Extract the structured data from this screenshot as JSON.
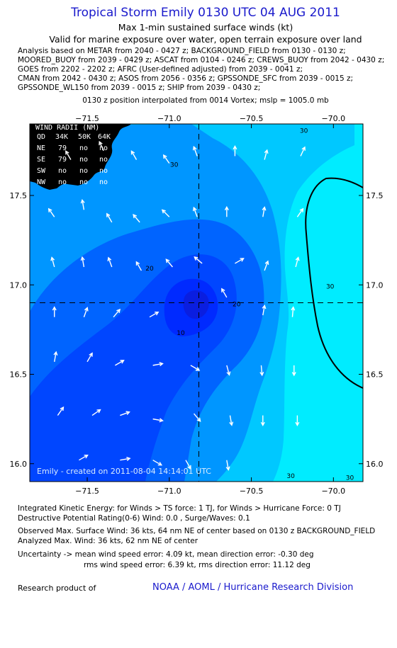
{
  "header": {
    "title": "Tropical Storm Emily 0130 UTC 04 AUG 2011",
    "subtitle": "Max 1-min sustained surface winds (kt)",
    "valid": "Valid for marine exposure over water, open terrain exposure over land",
    "analysis_lines": [
      "Analysis based on METAR from 2040 - 0427 z; BACKGROUND_FIELD from 0130 - 0130 z;",
      "MOORED_BUOY from 2039 - 0429 z; ASCAT from 0104 - 0246 z; CREWS_BUOY from 2042 - 0430 z;",
      "GOES from 2202 - 2202 z; AFRC (User-defined adjusted) from 2039 - 0041 z;",
      "CMAN from 2042 - 0430 z; ASOS from 2056 - 0356 z; GPSSONDE_SFC from 2039 - 0015 z;",
      "GPSSONDE_WL150 from 2039 - 0015 z; SHIP from 2039 - 0430 z;"
    ],
    "position_line": "0130 z position interpolated from 0014 Vortex; mslp = 1005.0 mb"
  },
  "chart_data": {
    "type": "contour",
    "x_ticks": [
      -71.5,
      -71.0,
      -70.5,
      -70.0
    ],
    "x_tick_labels": [
      "−71.5",
      "−71.0",
      "−70.5",
      "−70.0"
    ],
    "y_ticks": [
      17.5,
      17.0,
      16.5,
      16.0
    ],
    "y_tick_labels": [
      "17.5",
      "17.0",
      "16.5",
      "16.0"
    ],
    "xlim": [
      -71.85,
      -69.82
    ],
    "ylim": [
      15.9,
      17.9
    ],
    "center": {
      "lon": -70.82,
      "lat": 16.9
    },
    "contour_labels": [
      {
        "text": "30",
        "lon": -70.18,
        "lat": 17.85
      },
      {
        "text": "30",
        "lon": -70.97,
        "lat": 17.66
      },
      {
        "text": "20",
        "lon": -71.12,
        "lat": 17.08
      },
      {
        "text": "20",
        "lon": -70.59,
        "lat": 16.88
      },
      {
        "text": "10",
        "lon": -70.93,
        "lat": 16.72
      },
      {
        "text": "30",
        "lon": -70.02,
        "lat": 16.98
      },
      {
        "text": "30",
        "lon": -70.26,
        "lat": 15.92
      },
      {
        "text": "30",
        "lon": -69.9,
        "lat": 15.91
      }
    ],
    "wind_radii": {
      "title": "WIND RADII (NM)",
      "header": [
        "QD",
        "34K",
        "50K",
        "64K"
      ],
      "rows": [
        [
          "NE",
          "79",
          "no",
          "no"
        ],
        [
          "SE",
          "79",
          "no",
          "no"
        ],
        [
          "SW",
          "no",
          "no",
          "no"
        ],
        [
          "NW",
          "no",
          "no",
          "no"
        ]
      ]
    },
    "credit": "Emily - created on 2011-08-04 14:14:01 UTC",
    "colors": {
      "cyan_light": "#00ecff",
      "cyan": "#00c8ff",
      "blue1": "#0096ff",
      "blue2": "#0064ff",
      "blue3": "#0046ff",
      "blue4": "#002aff",
      "land": "#000000"
    },
    "wind_vectors": [
      {
        "lon": -71.6,
        "lat": 17.7,
        "angle": -30
      },
      {
        "lon": -71.4,
        "lat": 17.75,
        "angle": -25
      },
      {
        "lon": -71.2,
        "lat": 17.7,
        "angle": -30
      },
      {
        "lon": -71.0,
        "lat": 17.68,
        "angle": -35
      },
      {
        "lon": -70.83,
        "lat": 17.72,
        "angle": -20
      },
      {
        "lon": -70.6,
        "lat": 17.72,
        "angle": 0
      },
      {
        "lon": -70.42,
        "lat": 17.7,
        "angle": 15
      },
      {
        "lon": -70.2,
        "lat": 17.72,
        "angle": 25
      },
      {
        "lon": -71.7,
        "lat": 17.38,
        "angle": -35
      },
      {
        "lon": -71.52,
        "lat": 17.42,
        "angle": -10
      },
      {
        "lon": -71.35,
        "lat": 17.35,
        "angle": -30
      },
      {
        "lon": -71.18,
        "lat": 17.35,
        "angle": -40
      },
      {
        "lon": -71.0,
        "lat": 17.38,
        "angle": -45
      },
      {
        "lon": -70.83,
        "lat": 17.38,
        "angle": -20
      },
      {
        "lon": -70.65,
        "lat": 17.38,
        "angle": 0
      },
      {
        "lon": -70.43,
        "lat": 17.38,
        "angle": 10
      },
      {
        "lon": -70.22,
        "lat": 17.38,
        "angle": 35
      },
      {
        "lon": -71.7,
        "lat": 17.1,
        "angle": -15
      },
      {
        "lon": -71.52,
        "lat": 17.1,
        "angle": -10
      },
      {
        "lon": -71.35,
        "lat": 17.1,
        "angle": -20
      },
      {
        "lon": -71.17,
        "lat": 17.08,
        "angle": -30
      },
      {
        "lon": -70.98,
        "lat": 17.1,
        "angle": -40
      },
      {
        "lon": -70.8,
        "lat": 17.12,
        "angle": -50
      },
      {
        "lon": -70.6,
        "lat": 17.12,
        "angle": 60
      },
      {
        "lon": -70.42,
        "lat": 17.08,
        "angle": 20
      },
      {
        "lon": -70.23,
        "lat": 17.1,
        "angle": 15
      },
      {
        "lon": -71.7,
        "lat": 16.82,
        "angle": 0
      },
      {
        "lon": -71.52,
        "lat": 16.82,
        "angle": 20
      },
      {
        "lon": -71.34,
        "lat": 16.82,
        "angle": 40
      },
      {
        "lon": -71.12,
        "lat": 16.82,
        "angle": 60
      },
      {
        "lon": -70.65,
        "lat": 16.93,
        "angle": -30
      },
      {
        "lon": -70.43,
        "lat": 16.83,
        "angle": 10
      },
      {
        "lon": -70.25,
        "lat": 16.82,
        "angle": 5
      },
      {
        "lon": -71.7,
        "lat": 16.57,
        "angle": 10
      },
      {
        "lon": -71.5,
        "lat": 16.57,
        "angle": 30
      },
      {
        "lon": -71.33,
        "lat": 16.55,
        "angle": 60
      },
      {
        "lon": -71.1,
        "lat": 16.55,
        "angle": 80
      },
      {
        "lon": -70.87,
        "lat": 16.55,
        "angle": 120
      },
      {
        "lon": -70.65,
        "lat": 16.55,
        "angle": 165
      },
      {
        "lon": -70.44,
        "lat": 16.55,
        "angle": 175
      },
      {
        "lon": -70.24,
        "lat": 16.55,
        "angle": 180
      },
      {
        "lon": -71.68,
        "lat": 16.27,
        "angle": 35
      },
      {
        "lon": -71.47,
        "lat": 16.27,
        "angle": 55
      },
      {
        "lon": -71.3,
        "lat": 16.27,
        "angle": 70
      },
      {
        "lon": -71.1,
        "lat": 16.25,
        "angle": 100
      },
      {
        "lon": -70.85,
        "lat": 16.28,
        "angle": 140
      },
      {
        "lon": -70.63,
        "lat": 16.27,
        "angle": 170
      },
      {
        "lon": -70.43,
        "lat": 16.27,
        "angle": 180
      },
      {
        "lon": -70.22,
        "lat": 16.27,
        "angle": 180
      },
      {
        "lon": -71.55,
        "lat": 16.02,
        "angle": 60
      },
      {
        "lon": -71.3,
        "lat": 16.02,
        "angle": 80
      },
      {
        "lon": -71.1,
        "lat": 16.02,
        "angle": 120
      },
      {
        "lon": -70.9,
        "lat": 16.02,
        "angle": 150
      },
      {
        "lon": -70.65,
        "lat": 16.02,
        "angle": 170
      }
    ]
  },
  "footer": {
    "ike": "Integrated Kinetic Energy:  for Winds > TS force: 1 TJ,  for Winds > Hurricane Force: 0 TJ",
    "drp": "Destructive Potential Rating(0-6)   Wind: 0.0 , Surge/Waves: 0.1",
    "observed": "Observed Max. Surface Wind: 36 kts, 64 nm NE of center based on 0130 z BACKGROUND_FIELD",
    "analyzed": "Analyzed Max. Wind: 36 kts, 62 nm NE of center",
    "uncertainty1": "Uncertainty -> mean wind speed error: 4.09 kt,   mean direction error:  -0.30 deg",
    "uncertainty2": "rms wind speed error: 6.39 kt,   rms direction error: 11.12 deg",
    "research": "Research product of",
    "org": "NOAA / AOML / Hurricane Research Division"
  }
}
